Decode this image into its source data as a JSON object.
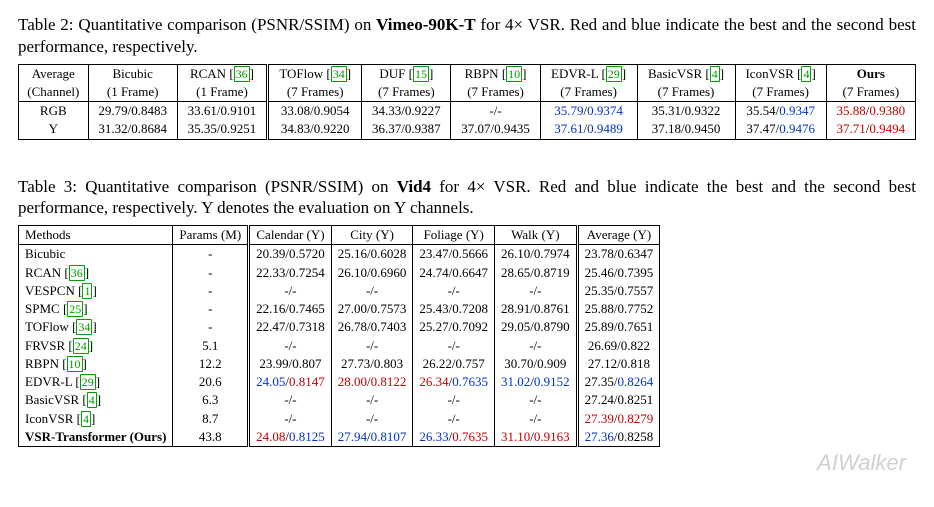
{
  "colors": {
    "red": "#c40000",
    "blue": "#0033cc",
    "cite": "#009a00"
  },
  "table2": {
    "caption_a": "Table 2: Quantitative comparison (PSNR/SSIM) on ",
    "caption_b_bold": "Vimeo-90K-T",
    "caption_c": " for 4× VSR. Red and blue indicate the best and the second best performance, respectively.",
    "head1": [
      "Average",
      "Bicubic",
      "RCAN",
      "TOFlow",
      "DUF",
      "RBPN",
      "EDVR-L",
      "BasicVSR",
      "IconVSR",
      "Ours"
    ],
    "head1_cite": [
      "",
      "",
      "36",
      "34",
      "15",
      "10",
      "29",
      "4",
      "4",
      ""
    ],
    "head2": [
      "(Channel)",
      "(1 Frame)",
      "(1 Frame)",
      "(7 Frames)",
      "(7 Frames)",
      "(7 Frames)",
      "(7 Frames)",
      "(7 Frames)",
      "(7 Frames)",
      "(7 Frames)"
    ],
    "rows": [
      {
        "label": "RGB",
        "cells": [
          {
            "t": "29.79/0.8483"
          },
          {
            "t": "33.61/0.9101"
          },
          {
            "t": "33.08/0.9054"
          },
          {
            "t": "34.33/0.9227"
          },
          {
            "t": "-/-"
          },
          {
            "p": "35.79",
            "s": "0.9374",
            "pc": "blue",
            "sc": "blue"
          },
          {
            "t": "35.31/0.9322"
          },
          {
            "p": "35.54",
            "s": "0.9347",
            "sc": "blue"
          },
          {
            "p": "35.88",
            "s": "0.9380",
            "pc": "red",
            "sc": "red"
          }
        ]
      },
      {
        "label": "Y",
        "cells": [
          {
            "t": "31.32/0.8684"
          },
          {
            "t": "35.35/0.9251"
          },
          {
            "t": "34.83/0.9220"
          },
          {
            "t": "36.37/0.9387"
          },
          {
            "t": "37.07/0.9435"
          },
          {
            "p": "37.61",
            "s": "0.9489",
            "pc": "blue",
            "sc": "blue"
          },
          {
            "t": "37.18/0.9450"
          },
          {
            "p": "37.47",
            "s": "0.9476",
            "sc": "blue"
          },
          {
            "p": "37.71",
            "s": "0.9494",
            "pc": "red",
            "sc": "red"
          }
        ]
      }
    ]
  },
  "table3": {
    "caption": "Table 3: Quantitative comparison (PSNR/SSIM) on Vid4 for 4× VSR. Red and blue indicate the best and the second best performance, respectively. Y denotes the evaluation on Y channels.",
    "caption_parts": {
      "a": "Table 3: Quantitative comparison (PSNR/SSIM) on ",
      "b_bold": "Vid4",
      "c": " for 4× VSR. Red and blue indicate the best and the second best performance, respectively. Y denotes the evaluation on Y channels."
    },
    "head": [
      "Methods",
      "Params (M)",
      "Calendar (Y)",
      "City (Y)",
      "Foliage (Y)",
      "Walk (Y)",
      "Average (Y)"
    ],
    "rows": [
      {
        "m": "Bicubic",
        "cite": "",
        "p": "-",
        "c": [
          {
            "t": "20.39/0.5720"
          },
          {
            "t": "25.16/0.6028"
          },
          {
            "t": "23.47/0.5666"
          },
          {
            "t": "26.10/0.7974"
          },
          {
            "t": "23.78/0.6347"
          }
        ]
      },
      {
        "m": "RCAN",
        "cite": "36",
        "p": "-",
        "c": [
          {
            "t": "22.33/0.7254"
          },
          {
            "t": "26.10/0.6960"
          },
          {
            "t": "24.74/0.6647"
          },
          {
            "t": "28.65/0.8719"
          },
          {
            "t": "25.46/0.7395"
          }
        ]
      },
      {
        "m": "VESPCN",
        "cite": "1",
        "p": "-",
        "c": [
          {
            "t": "-/-"
          },
          {
            "t": "-/-"
          },
          {
            "t": "-/-"
          },
          {
            "t": "-/-"
          },
          {
            "t": "25.35/0.7557"
          }
        ]
      },
      {
        "m": "SPMC",
        "cite": "25",
        "p": "-",
        "c": [
          {
            "t": "22.16/0.7465"
          },
          {
            "t": "27.00/0.7573"
          },
          {
            "t": "25.43/0.7208"
          },
          {
            "t": "28.91/0.8761"
          },
          {
            "t": "25.88/0.7752"
          }
        ]
      },
      {
        "m": "TOFlow",
        "cite": "34",
        "p": "-",
        "c": [
          {
            "t": "22.47/0.7318"
          },
          {
            "t": "26.78/0.7403"
          },
          {
            "t": "25.27/0.7092"
          },
          {
            "t": "29.05/0.8790"
          },
          {
            "t": "25.89/0.7651"
          }
        ]
      },
      {
        "m": "FRVSR",
        "cite": "24",
        "p": "5.1",
        "c": [
          {
            "t": "-/-"
          },
          {
            "t": "-/-"
          },
          {
            "t": "-/-"
          },
          {
            "t": "-/-"
          },
          {
            "t": "26.69/0.822"
          }
        ]
      },
      {
        "m": "RBPN",
        "cite": "10",
        "p": "12.2",
        "c": [
          {
            "t": "23.99/0.807"
          },
          {
            "t": "27.73/0.803"
          },
          {
            "t": "26.22/0.757"
          },
          {
            "t": "30.70/0.909"
          },
          {
            "t": "27.12/0.818"
          }
        ]
      },
      {
        "m": "EDVR-L",
        "cite": "29",
        "p": "20.6",
        "c": [
          {
            "p": "24.05",
            "s": "0.8147",
            "pc": "blue",
            "sc": "red"
          },
          {
            "p": "28.00",
            "s": "0.8122",
            "pc": "red",
            "sc": "red"
          },
          {
            "p": "26.34",
            "s": "0.7635",
            "pc": "red",
            "sc": "blue"
          },
          {
            "p": "31.02",
            "s": "0.9152",
            "pc": "blue",
            "sc": "blue"
          },
          {
            "p": "27.35",
            "s": "0.8264",
            "sc": "blue"
          }
        ]
      },
      {
        "m": "BasicVSR",
        "cite": "4",
        "p": "6.3",
        "c": [
          {
            "t": "-/-"
          },
          {
            "t": "-/-"
          },
          {
            "t": "-/-"
          },
          {
            "t": "-/-"
          },
          {
            "t": "27.24/0.8251"
          }
        ]
      },
      {
        "m": "IconVSR",
        "cite": "4",
        "p": "8.7",
        "c": [
          {
            "t": "-/-"
          },
          {
            "t": "-/-"
          },
          {
            "t": "-/-"
          },
          {
            "t": "-/-"
          },
          {
            "p": "27.39",
            "s": "0.8279",
            "pc": "red",
            "sc": "red",
            "obsc": true
          }
        ]
      },
      {
        "m": "VSR-Transformer (Ours)",
        "bold": true,
        "cite": "",
        "p": "43.8",
        "c": [
          {
            "p": "24.08",
            "s": "0.8125",
            "pc": "red",
            "sc": "blue"
          },
          {
            "p": "27.94",
            "s": "0.8107",
            "pc": "blue",
            "sc": "blue"
          },
          {
            "p": "26.33",
            "s": "0.7635",
            "pc": "blue",
            "sc": "red"
          },
          {
            "p": "31.10",
            "s": "0.9163",
            "pc": "red",
            "sc": "red"
          },
          {
            "p": "27.36",
            "s": "0.8258",
            "pc": "blue"
          }
        ]
      }
    ]
  },
  "watermark": "AIWalker"
}
